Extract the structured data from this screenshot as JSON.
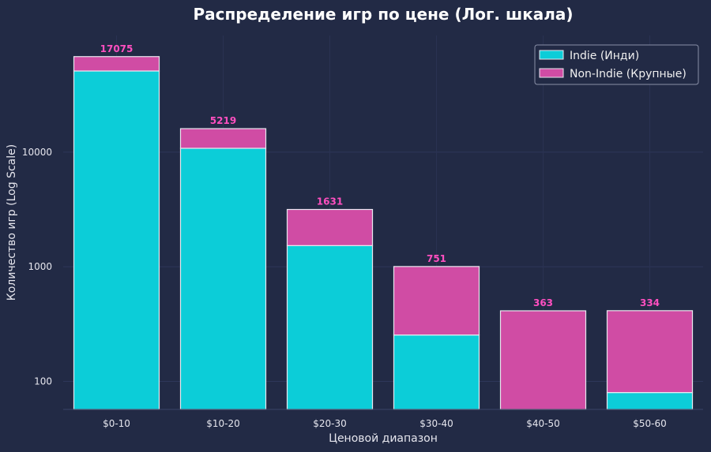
{
  "chart_data": {
    "type": "bar",
    "stacked": true,
    "title": "Распределение игр по цене (Лог. шкала)",
    "xlabel": "Ценовой диапазон",
    "ylabel": "Количество игр (Log Scale)",
    "yscale": "log",
    "ylim": [
      57,
      104000
    ],
    "yticks": [
      100,
      1000,
      10000
    ],
    "ytick_labels": [
      "100",
      "1000",
      "10000"
    ],
    "categories": [
      "$0-10",
      "$10-20",
      "$20-30",
      "$30-40",
      "$40-50",
      "$50-60"
    ],
    "series": [
      {
        "name": "Indie (Инди)",
        "color": "#0ccdd8",
        "values": [
          51000,
          10800,
          1530,
          254,
          50,
          80
        ]
      },
      {
        "name": "Non-Indie (Крупные)",
        "color": "#d04ca4",
        "values": [
          17075,
          5219,
          1631,
          751,
          363,
          334
        ]
      }
    ],
    "data_labels": [
      "17075",
      "5219",
      "1631",
      "751",
      "363",
      "334"
    ],
    "data_label_color": "#ff4fc0",
    "grid": true,
    "legend_position": "top-right",
    "background": "#222a45"
  }
}
